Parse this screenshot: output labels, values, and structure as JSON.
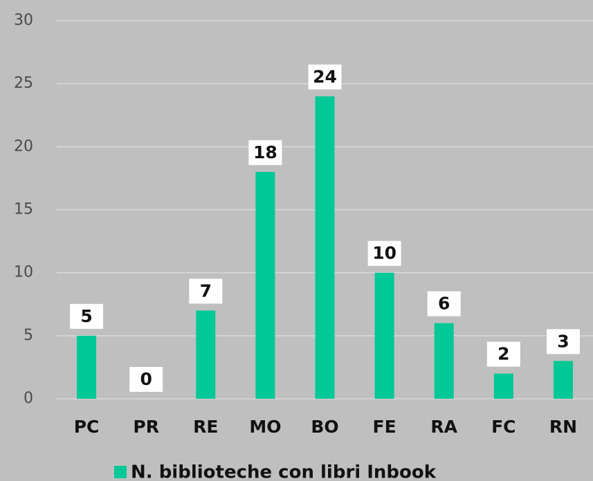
{
  "chart_data": {
    "type": "bar",
    "categories": [
      "PC",
      "PR",
      "RE",
      "MO",
      "BO",
      "FE",
      "RA",
      "FC",
      "RN"
    ],
    "series": [
      {
        "name": "N. biblioteche con libri Inbook",
        "color": "#00c896",
        "values": [
          5,
          0,
          7,
          18,
          24,
          10,
          6,
          2,
          3
        ]
      }
    ],
    "ylim": [
      0,
      30
    ],
    "yticks": [
      0,
      5,
      10,
      15,
      20,
      25,
      30
    ],
    "grid": true,
    "legend": "bottom"
  }
}
